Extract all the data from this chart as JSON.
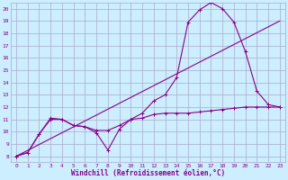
{
  "xlabel": "Windchill (Refroidissement éolien,°C)",
  "bg_color": "#cceeff",
  "grid_color": "#aaaacc",
  "line_color": "#880088",
  "xlim": [
    -0.5,
    23.5
  ],
  "ylim": [
    7.5,
    20.5
  ],
  "yticks": [
    8,
    9,
    10,
    11,
    12,
    13,
    14,
    15,
    16,
    17,
    18,
    19,
    20
  ],
  "xticks": [
    0,
    1,
    2,
    3,
    4,
    5,
    6,
    7,
    8,
    9,
    10,
    11,
    12,
    13,
    14,
    15,
    16,
    17,
    18,
    19,
    20,
    21,
    22,
    23
  ],
  "series1_x": [
    0,
    1,
    2,
    3,
    4,
    5,
    6,
    7,
    8,
    9,
    10,
    11,
    12,
    13,
    14,
    15,
    16,
    17,
    18,
    19,
    20,
    21,
    22,
    23
  ],
  "series1_y": [
    8.0,
    8.3,
    9.8,
    11.1,
    11.0,
    10.5,
    10.4,
    9.9,
    8.5,
    10.2,
    11.0,
    11.5,
    12.5,
    13.0,
    14.4,
    18.9,
    19.9,
    20.5,
    20.0,
    18.9,
    16.5,
    13.3,
    12.2,
    12.0
  ],
  "series2_x": [
    0,
    1,
    2,
    3,
    4,
    5,
    6,
    7,
    8,
    9,
    10,
    11,
    12,
    13,
    14,
    15,
    16,
    17,
    18,
    19,
    20,
    21,
    22,
    23
  ],
  "series2_y": [
    8.0,
    8.3,
    9.8,
    11.0,
    11.0,
    10.5,
    10.4,
    10.1,
    10.1,
    10.5,
    11.0,
    11.1,
    11.4,
    11.5,
    11.5,
    11.5,
    11.6,
    11.7,
    11.8,
    11.9,
    12.0,
    12.0,
    12.0,
    12.0
  ],
  "series3_x": [
    0,
    23
  ],
  "series3_y": [
    8.0,
    19.0
  ]
}
